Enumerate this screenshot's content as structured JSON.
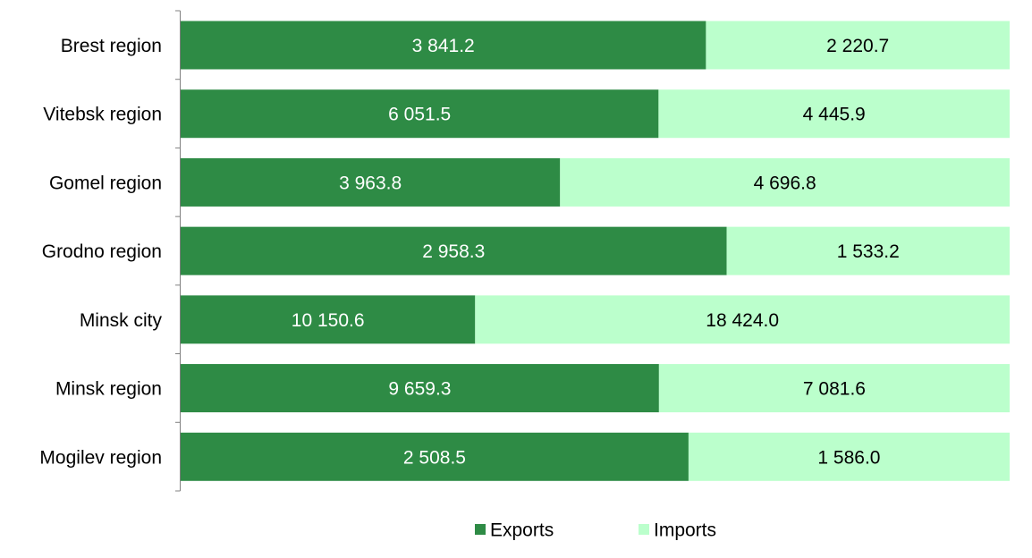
{
  "chart_data": {
    "type": "bar",
    "orientation": "horizontal",
    "stacking": "percent",
    "categories": [
      "Brest region",
      "Vitebsk region",
      "Gomel region",
      "Grodno region",
      "Minsk city",
      "Minsk region",
      "Mogilev region"
    ],
    "series": [
      {
        "name": "Exports",
        "color": "#2e8b45",
        "label_color": "#ffffff",
        "values": [
          3841.2,
          6051.5,
          3963.8,
          2958.3,
          10150.6,
          9659.3,
          2508.5
        ],
        "labels": [
          "3 841.2",
          "6 051.5",
          "3 963.8",
          "2 958.3",
          "10 150.6",
          "9 659.3",
          "2 508.5"
        ]
      },
      {
        "name": "Imports",
        "color": "#bbffcc",
        "label_color": "#000000",
        "values": [
          2220.7,
          4445.9,
          4696.8,
          1533.2,
          18424.0,
          7081.6,
          1586.0
        ],
        "labels": [
          "2 220.7",
          "4 445.9",
          "4 696.8",
          "1 533.2",
          "18 424.0",
          "7 081.6",
          "1 586.0"
        ]
      }
    ],
    "legend": {
      "position": "bottom"
    },
    "grid": false
  }
}
